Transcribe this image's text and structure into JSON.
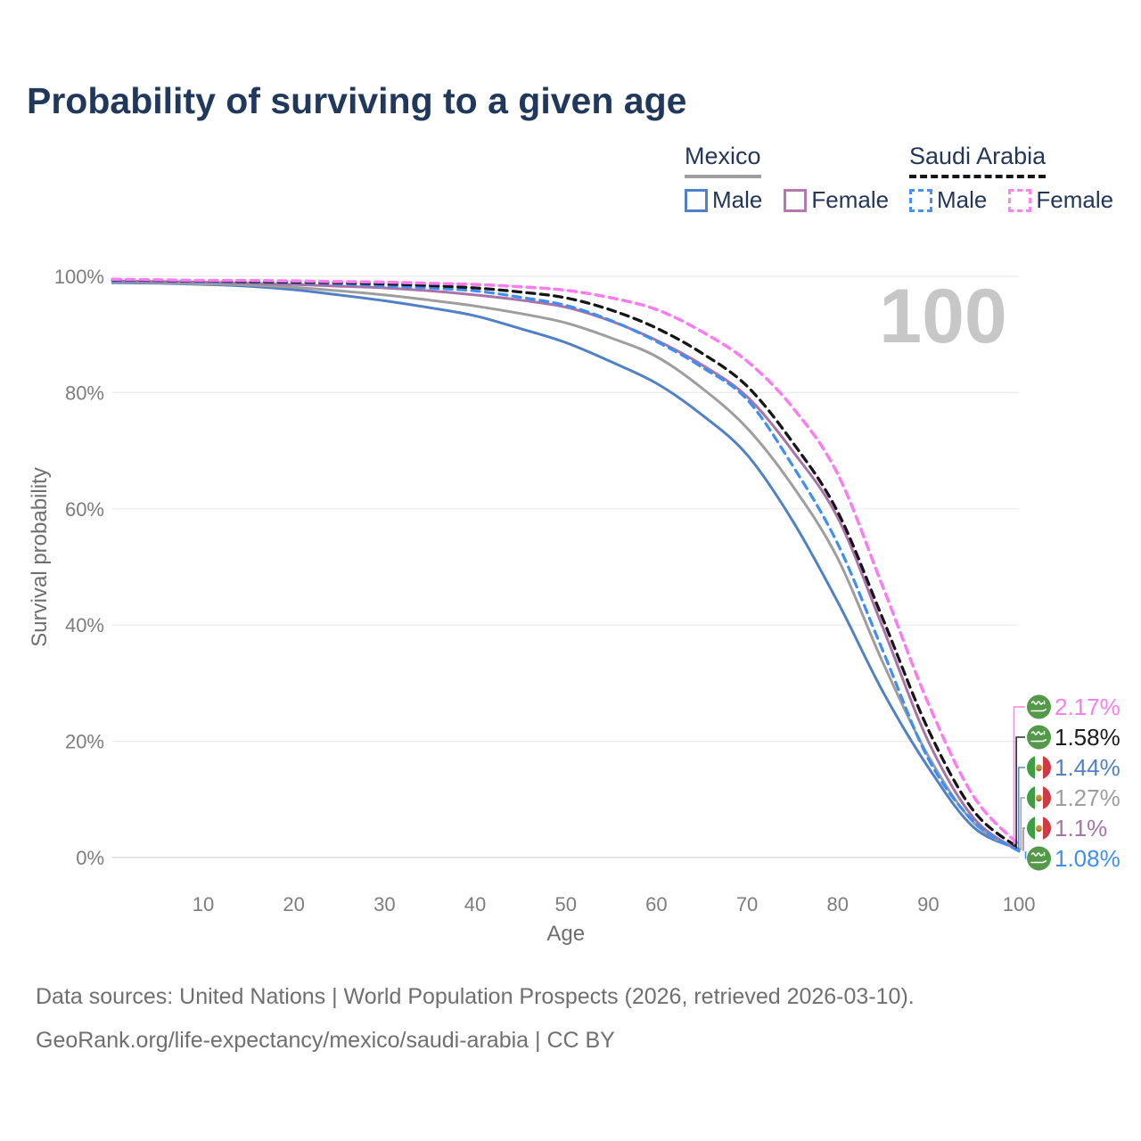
{
  "title": "Probability of surviving to a given age",
  "legend": {
    "groups": [
      {
        "id": "mexico",
        "label": "Mexico",
        "underline": "solid-gray",
        "items": [
          {
            "id": "mx-male",
            "label": "Male",
            "swatch_color": "#5081c6",
            "swatch_style": "solid"
          },
          {
            "id": "mx-female",
            "label": "Female",
            "swatch_color": "#b279af",
            "swatch_style": "solid"
          }
        ]
      },
      {
        "id": "saudi-arabia",
        "label": "Saudi Arabia",
        "underline": "dashed-black",
        "items": [
          {
            "id": "sa-male",
            "label": "Male",
            "swatch_color": "#4a90f0",
            "swatch_style": "dashed"
          },
          {
            "id": "sa-female",
            "label": "Female",
            "swatch_color": "#fa85ef",
            "swatch_style": "dashed"
          }
        ]
      }
    ]
  },
  "watermark": "100",
  "chart_data": {
    "type": "line",
    "title": "Probability of surviving to a given age",
    "xlabel": "Age",
    "ylabel": "Survival probability",
    "xlim": [
      0,
      100
    ],
    "ylim": [
      0,
      100
    ],
    "x_ticks": [
      10,
      20,
      30,
      40,
      50,
      60,
      70,
      80,
      90,
      100
    ],
    "y_ticks": [
      0,
      20,
      40,
      60,
      80,
      100
    ],
    "y_tick_suffix": "%",
    "grid": "horizontal-only",
    "legend_position": "top-right",
    "x": [
      0,
      5,
      10,
      15,
      20,
      25,
      30,
      35,
      40,
      45,
      50,
      55,
      60,
      65,
      70,
      75,
      80,
      85,
      90,
      95,
      100
    ],
    "series": [
      {
        "id": "mx-male",
        "name": "Mexico Male",
        "color": "#5081c6",
        "dash": false,
        "width": 3,
        "values": [
          98.9,
          98.8,
          98.6,
          98.3,
          97.7,
          96.8,
          95.8,
          94.6,
          93.2,
          91.0,
          88.6,
          85.3,
          81.6,
          76.2,
          69.3,
          58.0,
          44.0,
          28.5,
          15.5,
          5.2,
          1.44
        ]
      },
      {
        "id": "mx-all",
        "name": "Mexico",
        "color": "#9e9e9e",
        "dash": false,
        "width": 3,
        "values": [
          99.1,
          98.9,
          98.7,
          98.5,
          98.1,
          97.5,
          96.8,
          95.9,
          94.9,
          93.6,
          92.0,
          89.4,
          86.2,
          80.8,
          73.9,
          64.0,
          51.5,
          33.5,
          17.5,
          6.0,
          1.27
        ]
      },
      {
        "id": "mx-female",
        "name": "Mexico Female",
        "color": "#a873a9",
        "dash": false,
        "width": 3,
        "values": [
          99.2,
          99.1,
          99.0,
          98.8,
          98.6,
          98.3,
          98.0,
          97.5,
          96.8,
          95.9,
          94.7,
          92.3,
          89.0,
          84.8,
          79.3,
          70.0,
          58.5,
          39.5,
          20.0,
          6.8,
          1.1
        ]
      },
      {
        "id": "sa-male",
        "name": "Saudi Arabia Male",
        "color": "#3f8ef2",
        "dash": true,
        "width": 3.2,
        "values": [
          99.3,
          99.2,
          99.1,
          99.0,
          98.9,
          98.7,
          98.4,
          98.0,
          97.5,
          96.4,
          95.0,
          92.4,
          88.8,
          84.4,
          78.8,
          67.5,
          54.0,
          35.5,
          17.0,
          6.2,
          1.08
        ]
      },
      {
        "id": "sa-all",
        "name": "Saudi Arabia",
        "color": "#161616",
        "dash": true,
        "width": 3.3,
        "values": [
          99.4,
          99.3,
          99.2,
          99.1,
          99.0,
          98.9,
          98.7,
          98.4,
          98.0,
          97.3,
          96.3,
          94.2,
          91.1,
          86.8,
          81.1,
          71.5,
          59.5,
          41.0,
          22.0,
          8.0,
          1.58
        ]
      },
      {
        "id": "sa-female",
        "name": "Saudi Arabia Female",
        "color": "#fb7cf1",
        "dash": true,
        "width": 3.5,
        "values": [
          99.5,
          99.4,
          99.3,
          99.3,
          99.2,
          99.1,
          99.0,
          98.8,
          98.6,
          98.2,
          97.6,
          96.3,
          94.3,
          90.5,
          85.4,
          77.5,
          66.0,
          46.5,
          26.5,
          10.5,
          2.17
        ]
      }
    ],
    "end_labels": [
      {
        "series": "sa-female",
        "flag": "saudi-arabia",
        "label": "2.17%",
        "value": 2.17,
        "color": "#fb7cf1"
      },
      {
        "series": "sa-all",
        "flag": "saudi-arabia",
        "label": "1.58%",
        "value": 1.58,
        "color": "#1c1c1c"
      },
      {
        "series": "mx-male",
        "flag": "mexico",
        "label": "1.44%",
        "value": 1.44,
        "color": "#5081c6"
      },
      {
        "series": "mx-all",
        "flag": "mexico",
        "label": "1.27%",
        "value": 1.27,
        "color": "#9e9e9e"
      },
      {
        "series": "mx-female",
        "flag": "mexico",
        "label": "1.1%",
        "value": 1.1,
        "color": "#a873a9"
      },
      {
        "series": "sa-male",
        "flag": "saudi-arabia",
        "label": "1.08%",
        "value": 1.08,
        "color": "#3f8ef2"
      }
    ]
  },
  "colors": {
    "title": "#20385c",
    "legend_text": "#24375a",
    "tick_label": "#7d7d7d",
    "axis_title": "#6f6f6f",
    "gridline": "#ebebeb",
    "baseline": "#d2d2d2",
    "watermark": "#c7c7c7",
    "footer_text": "#6f6f6f",
    "flag_saudi_green": "#54994a",
    "flag_mexico_green": "#3f9d44",
    "flag_mexico_red": "#d03a45",
    "flag_emblem": "#c6913b"
  },
  "footer": {
    "line1": "Data sources: United Nations | World Population Prospects (2026, retrieved 2026-03-10).",
    "line2": "GeoRank.org/life-expectancy/mexico/saudi-arabia | CC BY"
  }
}
